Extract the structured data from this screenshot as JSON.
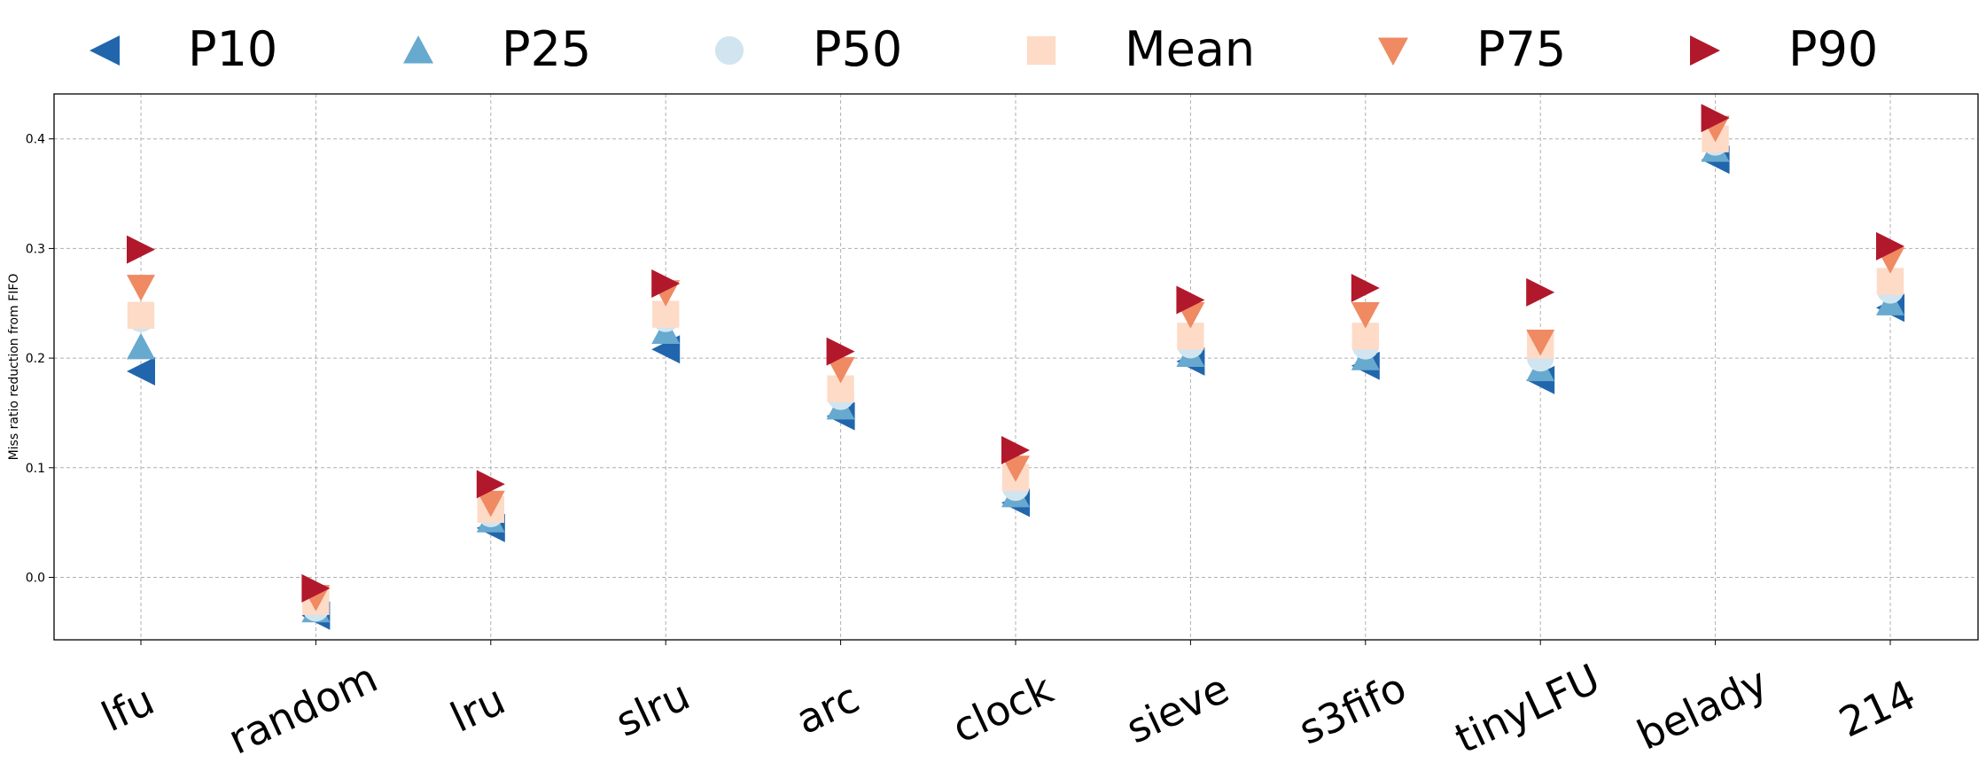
{
  "chart_data": {
    "type": "scatter",
    "ylabel": "Miss ratio reduction from FIFO",
    "xlabel": "",
    "categories": [
      "lfu",
      "random",
      "lru",
      "slru",
      "arc",
      "clock",
      "sieve",
      "s3fifo",
      "tinyLFU",
      "belady",
      "214"
    ],
    "ylim": [
      -0.057,
      0.441
    ],
    "yticks": [
      0.0,
      0.1,
      0.2,
      0.3,
      0.4
    ],
    "ytick_labels": [
      "0.0",
      "0.1",
      "0.2",
      "0.3",
      "0.4"
    ],
    "grid": true,
    "legend_position": "top",
    "series": [
      {
        "name": "P10",
        "marker": "triangle-left",
        "color": "#2166ac",
        "values": [
          0.188,
          -0.035,
          0.045,
          0.208,
          0.147,
          0.068,
          0.197,
          0.193,
          0.18,
          0.381,
          0.246
        ]
      },
      {
        "name": "P25",
        "marker": "triangle-up",
        "color": "#67a9cf",
        "values": [
          0.21,
          -0.03,
          0.052,
          0.224,
          0.155,
          0.075,
          0.203,
          0.2,
          0.19,
          0.39,
          0.25
        ]
      },
      {
        "name": "P50",
        "marker": "circle",
        "color": "#d1e5f0",
        "values": [
          0.236,
          -0.028,
          0.058,
          0.236,
          0.165,
          0.082,
          0.212,
          0.211,
          0.2,
          0.397,
          0.262
        ]
      },
      {
        "name": "Mean",
        "marker": "square",
        "color": "#fddbc7",
        "values": [
          0.239,
          -0.022,
          0.062,
          0.24,
          0.172,
          0.091,
          0.22,
          0.22,
          0.212,
          0.4,
          0.27
        ]
      },
      {
        "name": "P75",
        "marker": "triangle-down",
        "color": "#ef8a62",
        "values": [
          0.265,
          -0.018,
          0.068,
          0.26,
          0.19,
          0.1,
          0.24,
          0.24,
          0.215,
          0.41,
          0.29
        ]
      },
      {
        "name": "P90",
        "marker": "triangle-right",
        "color": "#b2182b",
        "values": [
          0.299,
          -0.01,
          0.085,
          0.268,
          0.206,
          0.116,
          0.253,
          0.264,
          0.26,
          0.419,
          0.302
        ]
      }
    ]
  }
}
